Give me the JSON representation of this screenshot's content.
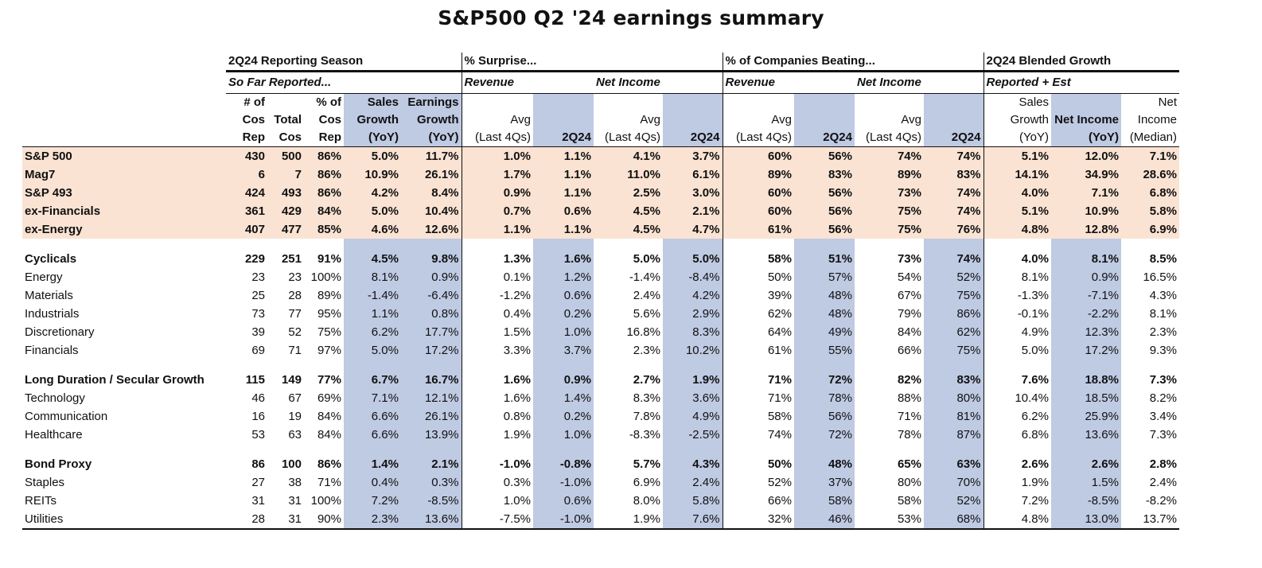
{
  "title": "S&P500 Q2 '24 earnings summary",
  "groups": {
    "reporting": "2Q24 Reporting Season",
    "surprise": "% Surprise...",
    "beating": "% of Companies Beating...",
    "blended": "2Q24 Blended Growth"
  },
  "subgroups": {
    "so_far": "So Far Reported...",
    "rev1": "Revenue",
    "ni1": "Net Income",
    "rev2": "Revenue",
    "ni2": "Net Income",
    "rep_est": "Reported + Est"
  },
  "col_headers": {
    "c1": [
      "# of",
      "Cos",
      "Rep"
    ],
    "c2": [
      "",
      "Total",
      "Cos"
    ],
    "c3": [
      "% of",
      "Cos",
      "Rep"
    ],
    "c4": [
      "Sales",
      "Growth",
      "(YoY)"
    ],
    "c5": [
      "Earnings",
      "Growth",
      "(YoY)"
    ],
    "c6": [
      "",
      "Avg",
      "(Last 4Qs)"
    ],
    "c7": [
      "",
      "",
      "2Q24"
    ],
    "c8": [
      "",
      "Avg",
      "(Last 4Qs)"
    ],
    "c9": [
      "",
      "",
      "2Q24"
    ],
    "c10": [
      "",
      "Avg",
      "(Last 4Qs)"
    ],
    "c11": [
      "",
      "",
      "2Q24"
    ],
    "c12": [
      "",
      "Avg",
      "(Last 4Qs)"
    ],
    "c13": [
      "",
      "",
      "2Q24"
    ],
    "c14": [
      "Sales",
      "Growth",
      "(YoY)"
    ],
    "c15": [
      "",
      "Net Income",
      "(YoY)"
    ],
    "c16": [
      "Net",
      "Income",
      "(Median)"
    ]
  },
  "summary_rows": [
    {
      "label": "S&P 500",
      "v": [
        "430",
        "500",
        "86%",
        "5.0%",
        "11.7%",
        "1.0%",
        "1.1%",
        "4.1%",
        "3.7%",
        "60%",
        "56%",
        "74%",
        "74%",
        "5.1%",
        "12.0%",
        "7.1%"
      ]
    },
    {
      "label": "Mag7",
      "v": [
        "6",
        "7",
        "86%",
        "10.9%",
        "26.1%",
        "1.7%",
        "1.1%",
        "11.0%",
        "6.1%",
        "89%",
        "83%",
        "89%",
        "83%",
        "14.1%",
        "34.9%",
        "28.6%"
      ]
    },
    {
      "label": "S&P 493",
      "v": [
        "424",
        "493",
        "86%",
        "4.2%",
        "8.4%",
        "0.9%",
        "1.1%",
        "2.5%",
        "3.0%",
        "60%",
        "56%",
        "73%",
        "74%",
        "4.0%",
        "7.1%",
        "6.8%"
      ]
    },
    {
      "label": "ex-Financials",
      "v": [
        "361",
        "429",
        "84%",
        "5.0%",
        "10.4%",
        "0.7%",
        "0.6%",
        "4.5%",
        "2.1%",
        "60%",
        "56%",
        "75%",
        "74%",
        "5.1%",
        "10.9%",
        "5.8%"
      ]
    },
    {
      "label": "ex-Energy",
      "v": [
        "407",
        "477",
        "85%",
        "4.6%",
        "12.6%",
        "1.1%",
        "1.1%",
        "4.5%",
        "4.7%",
        "61%",
        "56%",
        "75%",
        "76%",
        "4.8%",
        "12.8%",
        "6.9%"
      ]
    }
  ],
  "sections": [
    {
      "header": {
        "label": "Cyclicals",
        "v": [
          "229",
          "251",
          "91%",
          "4.5%",
          "9.8%",
          "1.3%",
          "1.6%",
          "5.0%",
          "5.0%",
          "58%",
          "51%",
          "73%",
          "74%",
          "4.0%",
          "8.1%",
          "8.5%"
        ]
      },
      "rows": [
        {
          "label": "Energy",
          "v": [
            "23",
            "23",
            "100%",
            "8.1%",
            "0.9%",
            "0.1%",
            "1.2%",
            "-1.4%",
            "-8.4%",
            "50%",
            "57%",
            "54%",
            "52%",
            "8.1%",
            "0.9%",
            "16.5%"
          ]
        },
        {
          "label": "Materials",
          "v": [
            "25",
            "28",
            "89%",
            "-1.4%",
            "-6.4%",
            "-1.2%",
            "0.6%",
            "2.4%",
            "4.2%",
            "39%",
            "48%",
            "67%",
            "75%",
            "-1.3%",
            "-7.1%",
            "4.3%"
          ]
        },
        {
          "label": "Industrials",
          "v": [
            "73",
            "77",
            "95%",
            "1.1%",
            "0.8%",
            "0.4%",
            "0.2%",
            "5.6%",
            "2.9%",
            "62%",
            "48%",
            "79%",
            "86%",
            "-0.1%",
            "-2.2%",
            "8.1%"
          ]
        },
        {
          "label": "Discretionary",
          "v": [
            "39",
            "52",
            "75%",
            "6.2%",
            "17.7%",
            "1.5%",
            "1.0%",
            "16.8%",
            "8.3%",
            "64%",
            "49%",
            "84%",
            "62%",
            "4.9%",
            "12.3%",
            "2.3%"
          ]
        },
        {
          "label": "Financials",
          "v": [
            "69",
            "71",
            "97%",
            "5.0%",
            "17.2%",
            "3.3%",
            "3.7%",
            "2.3%",
            "10.2%",
            "61%",
            "55%",
            "66%",
            "75%",
            "5.0%",
            "17.2%",
            "9.3%"
          ]
        }
      ]
    },
    {
      "header": {
        "label": "Long Duration / Secular Growth",
        "v": [
          "115",
          "149",
          "77%",
          "6.7%",
          "16.7%",
          "1.6%",
          "0.9%",
          "2.7%",
          "1.9%",
          "71%",
          "72%",
          "82%",
          "83%",
          "7.6%",
          "18.8%",
          "7.3%"
        ]
      },
      "rows": [
        {
          "label": "Technology",
          "v": [
            "46",
            "67",
            "69%",
            "7.1%",
            "12.1%",
            "1.6%",
            "1.4%",
            "8.3%",
            "3.6%",
            "71%",
            "78%",
            "88%",
            "80%",
            "10.4%",
            "18.5%",
            "8.2%"
          ]
        },
        {
          "label": "Communication",
          "v": [
            "16",
            "19",
            "84%",
            "6.6%",
            "26.1%",
            "0.8%",
            "0.2%",
            "7.8%",
            "4.9%",
            "58%",
            "56%",
            "71%",
            "81%",
            "6.2%",
            "25.9%",
            "3.4%"
          ]
        },
        {
          "label": "Healthcare",
          "v": [
            "53",
            "63",
            "84%",
            "6.6%",
            "13.9%",
            "1.9%",
            "1.0%",
            "-8.3%",
            "-2.5%",
            "74%",
            "72%",
            "78%",
            "87%",
            "6.8%",
            "13.6%",
            "7.3%"
          ]
        }
      ]
    },
    {
      "header": {
        "label": "Bond Proxy",
        "v": [
          "86",
          "100",
          "86%",
          "1.4%",
          "2.1%",
          "-1.0%",
          "-0.8%",
          "5.7%",
          "4.3%",
          "50%",
          "48%",
          "65%",
          "63%",
          "2.6%",
          "2.6%",
          "2.8%"
        ]
      },
      "rows": [
        {
          "label": "Staples",
          "v": [
            "27",
            "38",
            "71%",
            "0.4%",
            "0.3%",
            "0.3%",
            "-1.0%",
            "6.9%",
            "2.4%",
            "52%",
            "37%",
            "80%",
            "70%",
            "1.9%",
            "1.5%",
            "2.4%"
          ]
        },
        {
          "label": "REITs",
          "v": [
            "31",
            "31",
            "100%",
            "7.2%",
            "-8.5%",
            "1.0%",
            "0.6%",
            "8.0%",
            "5.8%",
            "66%",
            "58%",
            "58%",
            "52%",
            "7.2%",
            "-8.5%",
            "-8.2%"
          ]
        },
        {
          "label": "Utilities",
          "v": [
            "28",
            "31",
            "90%",
            "2.3%",
            "13.6%",
            "-7.5%",
            "-1.0%",
            "1.9%",
            "7.6%",
            "32%",
            "46%",
            "53%",
            "68%",
            "4.8%",
            "13.0%",
            "13.7%"
          ]
        }
      ]
    }
  ]
}
